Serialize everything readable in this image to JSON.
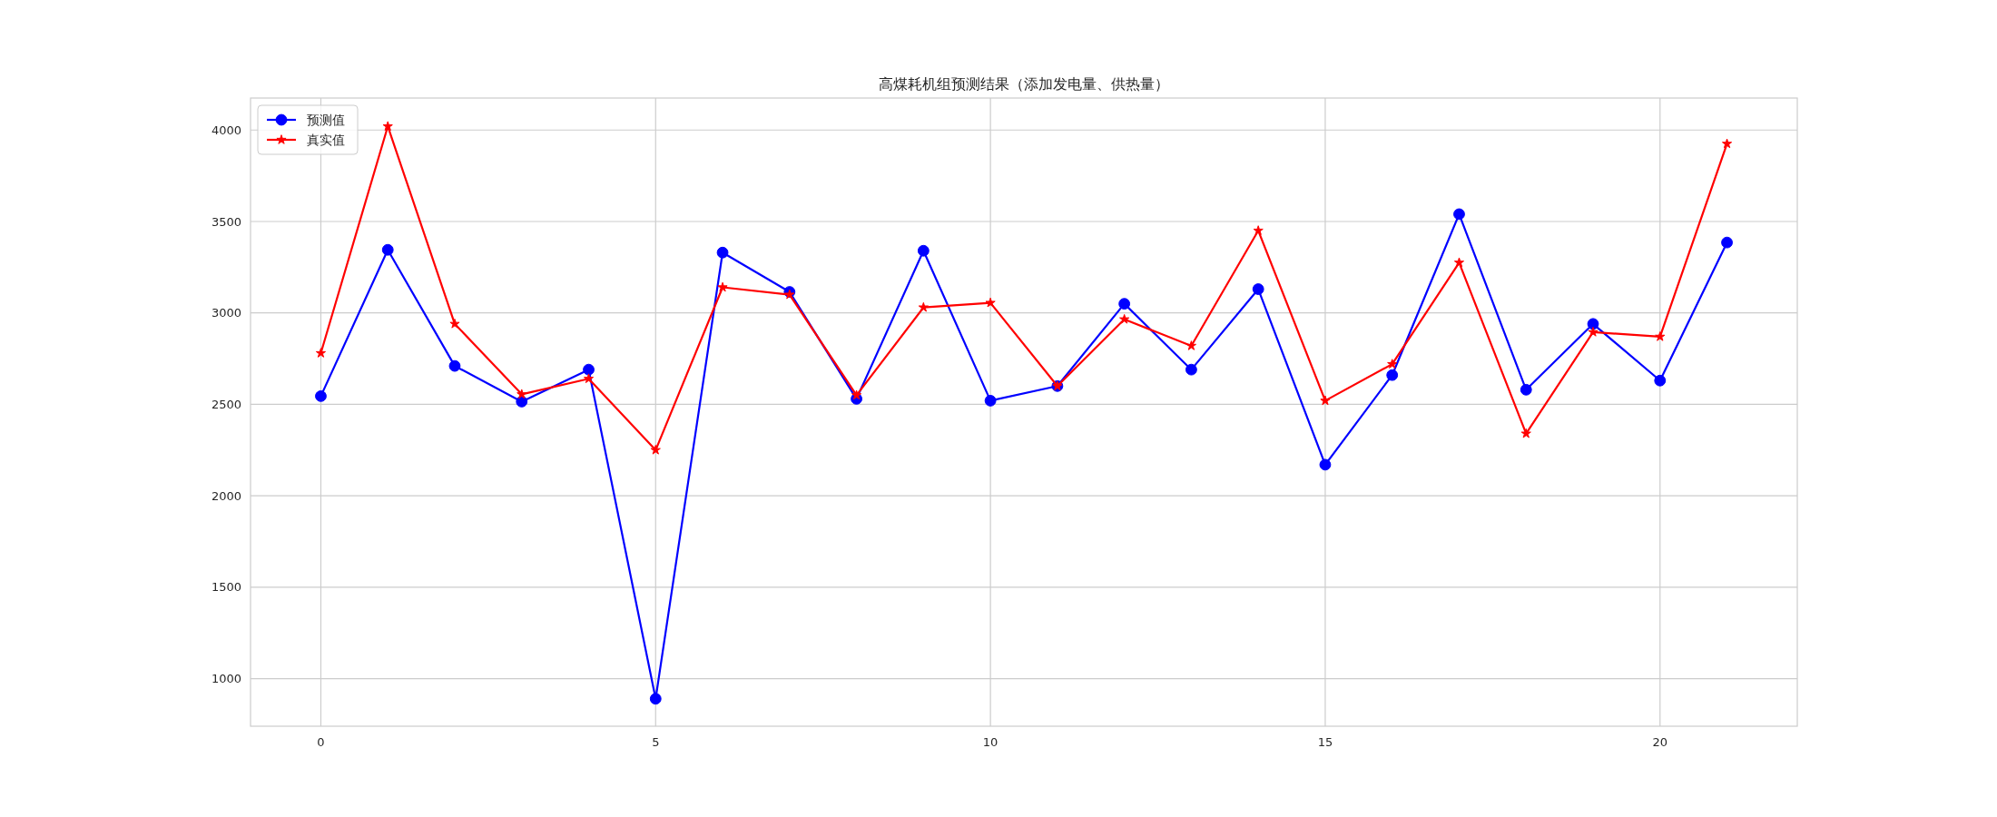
{
  "chart_data": {
    "type": "line",
    "title": "高煤耗机组预测结果（添加发电量、供热量）",
    "x": [
      0,
      1,
      2,
      3,
      4,
      5,
      6,
      7,
      8,
      9,
      10,
      11,
      12,
      13,
      14,
      15,
      16,
      17,
      18,
      19,
      20,
      21
    ],
    "series": [
      {
        "name": "预测值",
        "color": "#0000ff",
        "marker": "circle",
        "values": [
          2545,
          3345,
          2710,
          2515,
          2690,
          890,
          3330,
          3115,
          2530,
          3340,
          2520,
          2600,
          3050,
          2690,
          3130,
          2170,
          2660,
          3540,
          2580,
          2940,
          2630,
          3385
        ]
      },
      {
        "name": "真实值",
        "color": "#ff0000",
        "marker": "star",
        "values": [
          2780,
          4020,
          2940,
          2555,
          2640,
          2250,
          3140,
          3100,
          2550,
          3030,
          3055,
          2600,
          2965,
          2820,
          3450,
          2520,
          2720,
          3275,
          2340,
          2895,
          2870,
          3925
        ]
      }
    ],
    "xlim": [
      -1.05,
      22.05
    ],
    "ylim": [
      740,
      4175
    ],
    "xticks": [
      0,
      5,
      10,
      15,
      20
    ],
    "yticks": [
      1000,
      1500,
      2000,
      2500,
      3000,
      3500,
      4000
    ],
    "grid": true,
    "legend": "top left",
    "line_style": "solid"
  }
}
